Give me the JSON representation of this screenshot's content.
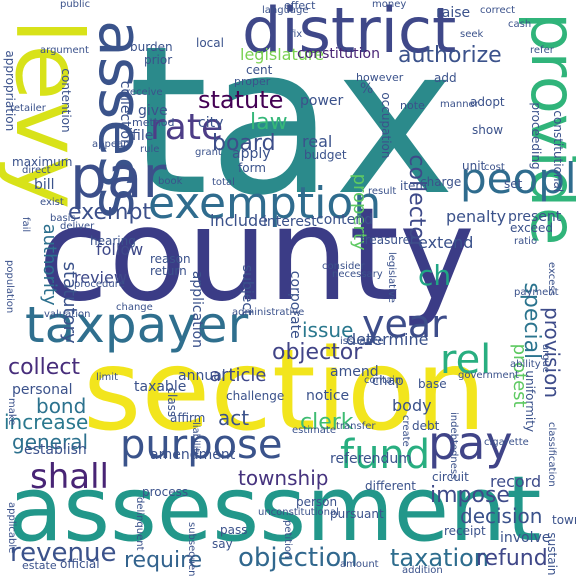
{
  "words": [
    {
      "text": "tax",
      "color": "#2b8a8b"
    },
    {
      "text": "county",
      "color": "#3b3c86"
    },
    {
      "text": "section",
      "color": "#f2e51d"
    },
    {
      "text": "assessment",
      "color": "#22978a"
    },
    {
      "text": "levy",
      "color": "#d8e219"
    },
    {
      "text": "district",
      "color": "#3f4889"
    },
    {
      "text": "assess",
      "color": "#3a538b"
    },
    {
      "text": "provide",
      "color": "#30b47a"
    },
    {
      "text": "par",
      "color": "#3c4f8a"
    },
    {
      "text": "taxpayer",
      "color": "#2f6f8e"
    },
    {
      "text": "exemption",
      "color": "#2f6c8e"
    },
    {
      "text": "people",
      "color": "#2f6c8e"
    },
    {
      "text": "rate",
      "color": "#4d3d87"
    },
    {
      "text": "purpose",
      "color": "#3a538b"
    },
    {
      "text": "fund",
      "color": "#28ae80"
    },
    {
      "text": "pay",
      "color": "#404488"
    },
    {
      "text": "year",
      "color": "#3d4d8a"
    },
    {
      "text": "rel",
      "color": "#28ae80"
    },
    {
      "text": "shall",
      "color": "#482475"
    },
    {
      "text": "objection",
      "color": "#31688e"
    },
    {
      "text": "revenue",
      "color": "#3b528b"
    },
    {
      "text": "require",
      "color": "#33638d"
    },
    {
      "text": "taxation",
      "color": "#2e6d8e"
    },
    {
      "text": "refund",
      "color": "#3f4788"
    },
    {
      "text": "statute",
      "color": "#440154"
    },
    {
      "text": "board",
      "color": "#3d4e8a"
    },
    {
      "text": "law",
      "color": "#35b779"
    },
    {
      "text": "exempt",
      "color": "#3c508b"
    },
    {
      "text": "collect",
      "color": "#472d7b"
    },
    {
      "text": "bond",
      "color": "#2c728e"
    },
    {
      "text": "increase",
      "color": "#2a788e"
    },
    {
      "text": "general",
      "color": "#2d718e"
    },
    {
      "text": "township",
      "color": "#46337e"
    },
    {
      "text": "impose",
      "color": "#3e4a89"
    },
    {
      "text": "record",
      "color": "#3e4c8a"
    },
    {
      "text": "decision",
      "color": "#3b528b"
    },
    {
      "text": "article",
      "color": "#3f4889"
    },
    {
      "text": "clerk",
      "color": "#3ebc73"
    },
    {
      "text": "act",
      "color": "#3b528b"
    },
    {
      "text": "objector",
      "color": "#414487"
    },
    {
      "text": "issue",
      "color": "#2a788e"
    },
    {
      "text": "determine",
      "color": "#3b528b"
    },
    {
      "text": "provision",
      "color": "#3e4c8a"
    },
    {
      "text": "special",
      "color": "#2b748e"
    },
    {
      "text": "protest",
      "color": "#5ec962"
    },
    {
      "text": "property",
      "color": "#5ec962"
    },
    {
      "text": "collector",
      "color": "#3e4a89"
    },
    {
      "text": "authorize",
      "color": "#3b528b"
    },
    {
      "text": "legislature",
      "color": "#7ad151"
    },
    {
      "text": "constitution",
      "color": "#482475"
    },
    {
      "text": "ch",
      "color": "#21a685"
    },
    {
      "text": "authority",
      "color": "#2d708e"
    },
    {
      "text": "statutory",
      "color": "#3b528b"
    },
    {
      "text": "review",
      "color": "#3e4989"
    },
    {
      "text": "follow",
      "color": "#3e4989"
    },
    {
      "text": "include",
      "color": "#3b528b"
    },
    {
      "text": "interest",
      "color": "#3b528b"
    },
    {
      "text": "contend",
      "color": "#3b528b"
    },
    {
      "text": "penalty",
      "color": "#3b528b"
    },
    {
      "text": "present",
      "color": "#3b528b"
    },
    {
      "text": "extend",
      "color": "#3b528b"
    },
    {
      "text": "treasurer",
      "color": "#3b528b"
    },
    {
      "text": "application",
      "color": "#3b528b"
    },
    {
      "text": "corporate",
      "color": "#3b528b"
    },
    {
      "text": "subject",
      "color": "#3b528b"
    },
    {
      "text": "reason",
      "color": "#3b528b"
    },
    {
      "text": "return",
      "color": "#3b528b"
    },
    {
      "text": "amend",
      "color": "#3b528b"
    },
    {
      "text": "notice",
      "color": "#3b528b"
    },
    {
      "text": "chap",
      "color": "#3b528b"
    },
    {
      "text": "annual",
      "color": "#3b528b"
    },
    {
      "text": "taxable",
      "color": "#3b528b"
    },
    {
      "text": "personal",
      "color": "#3b528b"
    },
    {
      "text": "establish",
      "color": "#3b528b"
    },
    {
      "text": "body",
      "color": "#3b528b"
    },
    {
      "text": "amendment",
      "color": "#3b528b"
    },
    {
      "text": "referendum",
      "color": "#3b528b"
    },
    {
      "text": "involve",
      "color": "#3b528b"
    },
    {
      "text": "official",
      "color": "#3b528b"
    },
    {
      "text": "estate",
      "color": "#3b528b"
    },
    {
      "text": "bill",
      "color": "#3b528b"
    },
    {
      "text": "collection",
      "color": "#3b528b"
    },
    {
      "text": "power",
      "color": "#3b528b"
    },
    {
      "text": "apply",
      "color": "#3b528b"
    },
    {
      "text": "file",
      "color": "#3b528b"
    },
    {
      "text": "give",
      "color": "#3b528b"
    },
    {
      "text": "city",
      "color": "#3b528b"
    },
    {
      "text": "real",
      "color": "#3b528b"
    },
    {
      "text": "budget",
      "color": "#3b528b"
    },
    {
      "text": "occupation",
      "color": "#3b528b"
    },
    {
      "text": "hearing",
      "color": "#3b528b"
    },
    {
      "text": "appropriation",
      "color": "#3b528b"
    },
    {
      "text": "maximum",
      "color": "#3b528b"
    },
    {
      "text": "contention",
      "color": "#3b528b"
    },
    {
      "text": "burden",
      "color": "#3b528b"
    },
    {
      "text": "prior",
      "color": "#3b528b"
    },
    {
      "text": "local",
      "color": "#3b528b"
    },
    {
      "text": "cent",
      "color": "#3b528b"
    },
    {
      "text": "proper",
      "color": "#3b528b"
    },
    {
      "text": "however",
      "color": "#3b528b"
    },
    {
      "text": "raise",
      "color": "#3b528b"
    },
    {
      "text": "public",
      "color": "#3b528b"
    },
    {
      "text": "effect",
      "color": "#3b528b"
    },
    {
      "text": "argument",
      "color": "#3b528b"
    },
    {
      "text": "fix",
      "color": "#3b528b"
    },
    {
      "text": "money",
      "color": "#3b528b"
    },
    {
      "text": "correct",
      "color": "#3b528b"
    },
    {
      "text": "cash",
      "color": "#3b528b"
    },
    {
      "text": "language",
      "color": "#3b528b"
    },
    {
      "text": "retailer",
      "color": "#3b528b"
    },
    {
      "text": "receive",
      "color": "#3b528b"
    },
    {
      "text": "method",
      "color": "#3b528b"
    },
    {
      "text": "appear",
      "color": "#3b528b"
    },
    {
      "text": "rule",
      "color": "#3b528b"
    },
    {
      "text": "grant",
      "color": "#3b528b"
    },
    {
      "text": "form",
      "color": "#3b528b"
    },
    {
      "text": "total",
      "color": "#3b528b"
    },
    {
      "text": "book",
      "color": "#3b528b"
    },
    {
      "text": "direct",
      "color": "#3b528b"
    },
    {
      "text": "exist",
      "color": "#3b528b"
    },
    {
      "text": "basis",
      "color": "#3b528b"
    },
    {
      "text": "deliver",
      "color": "#3b528b"
    },
    {
      "text": "population",
      "color": "#3b528b"
    },
    {
      "text": "fail",
      "color": "#3b528b"
    },
    {
      "text": "change",
      "color": "#3b528b"
    },
    {
      "text": "administrative",
      "color": "#3b528b"
    },
    {
      "text": "legislative",
      "color": "#3b528b"
    },
    {
      "text": "consider",
      "color": "#3b528b"
    },
    {
      "text": "necessary",
      "color": "#3b528b"
    },
    {
      "text": "procedure",
      "color": "#3b528b"
    },
    {
      "text": "valuation",
      "color": "#3b528b"
    },
    {
      "text": "limit",
      "color": "#3b528b"
    },
    {
      "text": "class",
      "color": "#3b528b"
    },
    {
      "text": "challenge",
      "color": "#3b528b"
    },
    {
      "text": "affirm",
      "color": "#3b528b"
    },
    {
      "text": "liability",
      "color": "#3b528b"
    },
    {
      "text": "estimate",
      "color": "#3b528b"
    },
    {
      "text": "transfer",
      "color": "#3b528b"
    },
    {
      "text": "issuance",
      "color": "#3b528b"
    },
    {
      "text": "contain",
      "color": "#3b528b"
    },
    {
      "text": "base",
      "color": "#3b528b"
    },
    {
      "text": "government",
      "color": "#3b528b"
    },
    {
      "text": "argue",
      "color": "#3b528b"
    },
    {
      "text": "uniformity",
      "color": "#3b528b"
    },
    {
      "text": "payment",
      "color": "#3b528b"
    },
    {
      "text": "excess",
      "color": "#3b528b"
    },
    {
      "text": "exceed",
      "color": "#3b528b"
    },
    {
      "text": "ratio",
      "color": "#3b528b"
    },
    {
      "text": "result",
      "color": "#3b528b"
    },
    {
      "text": "set",
      "color": "#3b528b"
    },
    {
      "text": "unit",
      "color": "#3b528b"
    },
    {
      "text": "cost",
      "color": "#3b528b"
    },
    {
      "text": "item",
      "color": "#3b528b"
    },
    {
      "text": "charge",
      "color": "#3b528b"
    },
    {
      "text": "constitutional",
      "color": "#3b528b"
    },
    {
      "text": "proceeding",
      "color": "#3b528b"
    },
    {
      "text": "show",
      "color": "#3b528b"
    },
    {
      "text": "manner",
      "color": "#3b528b"
    },
    {
      "text": "adopt",
      "color": "#3b528b"
    },
    {
      "text": "note",
      "color": "#3b528b"
    },
    {
      "text": "add",
      "color": "#3b528b"
    },
    {
      "text": "refer",
      "color": "#3b528b"
    },
    {
      "text": "seek",
      "color": "#3b528b"
    },
    {
      "text": "pursuant",
      "color": "#3b528b"
    },
    {
      "text": "different",
      "color": "#3b528b"
    },
    {
      "text": "person",
      "color": "#3b528b"
    },
    {
      "text": "create",
      "color": "#3b528b"
    },
    {
      "text": "debt",
      "color": "#3b528b"
    },
    {
      "text": "cigarette",
      "color": "#3b528b"
    },
    {
      "text": "indebtedness",
      "color": "#3b528b"
    },
    {
      "text": "classification",
      "color": "#3b528b"
    },
    {
      "text": "town",
      "color": "#3b528b"
    },
    {
      "text": "sustain",
      "color": "#3b528b"
    },
    {
      "text": "receipt",
      "color": "#3b528b"
    },
    {
      "text": "amount",
      "color": "#3b528b"
    },
    {
      "text": "addition",
      "color": "#3b528b"
    },
    {
      "text": "pass",
      "color": "#3b528b"
    },
    {
      "text": "petition",
      "color": "#3b528b"
    },
    {
      "text": "subsequent",
      "color": "#3b528b"
    },
    {
      "text": "say",
      "color": "#3b528b"
    },
    {
      "text": "unconstitutional",
      "color": "#3b528b"
    },
    {
      "text": "process",
      "color": "#3b528b"
    },
    {
      "text": "delinquent",
      "color": "#3b528b"
    },
    {
      "text": "applicable",
      "color": "#3b528b"
    },
    {
      "text": "circuit",
      "color": "#3b528b"
    },
    {
      "text": "make",
      "color": "#3b528b"
    },
    {
      "text": "ability",
      "color": "#3b528b"
    },
    {
      "text": "%",
      "color": "#3b528b"
    }
  ]
}
